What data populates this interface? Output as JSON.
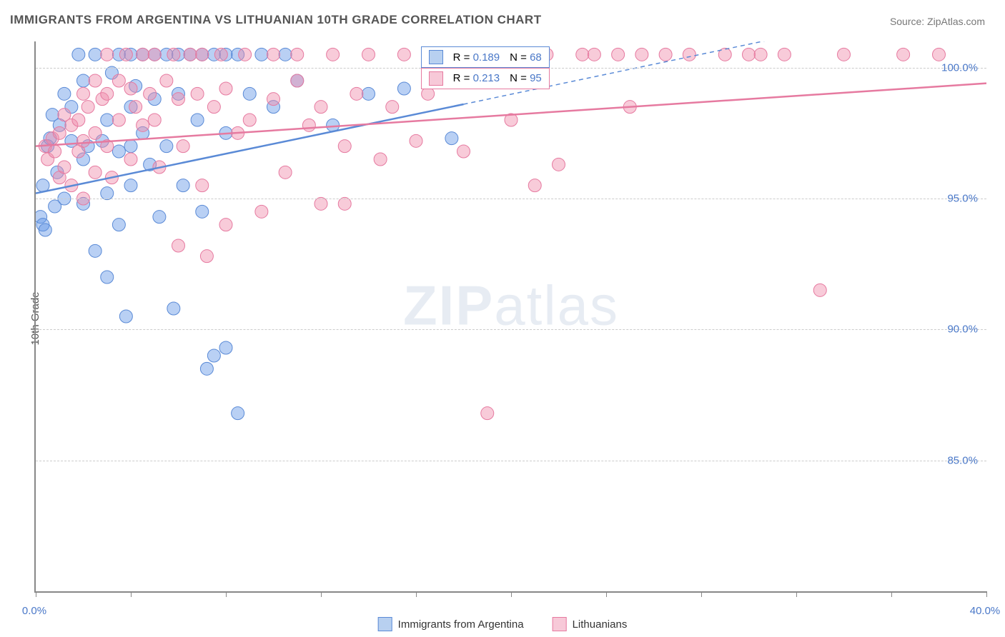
{
  "title": "IMMIGRANTS FROM ARGENTINA VS LITHUANIAN 10TH GRADE CORRELATION CHART",
  "source": "Source: ZipAtlas.com",
  "ylabel": "10th Grade",
  "watermark_bold": "ZIP",
  "watermark_rest": "atlas",
  "chart": {
    "type": "scatter",
    "xlim": [
      0,
      40
    ],
    "ylim": [
      80,
      101
    ],
    "xtick_positions": [
      0,
      4,
      8,
      12,
      16,
      20,
      24,
      28,
      32,
      36,
      40
    ],
    "xtick_labels": {
      "0": "0.0%",
      "40": "40.0%"
    },
    "ytick_positions": [
      85,
      90,
      95,
      100
    ],
    "ytick_labels": [
      "85.0%",
      "90.0%",
      "95.0%",
      "100.0%"
    ],
    "background_color": "#ffffff",
    "grid_color": "#cccccc",
    "axis_color": "#888888",
    "label_color": "#4a78c8",
    "marker_radius": 9,
    "marker_opacity": 0.55,
    "trend_line_width": 2.5,
    "series": [
      {
        "name": "Immigrants from Argentina",
        "color_fill": "rgba(100,150,230,0.45)",
        "color_stroke": "#5a8ad6",
        "swatch_fill": "#b8d0f0",
        "swatch_border": "#5a8ad6",
        "R": "0.189",
        "N": "68",
        "trend": {
          "x1": 0,
          "y1": 95.2,
          "x2": 18,
          "y2": 98.6,
          "x2_dash": 40,
          "y2_dash": 102.8
        },
        "points": [
          [
            0.2,
            94.3
          ],
          [
            0.3,
            94.0
          ],
          [
            0.4,
            93.8
          ],
          [
            0.3,
            95.5
          ],
          [
            0.5,
            97.0
          ],
          [
            0.6,
            97.3
          ],
          [
            0.8,
            94.7
          ],
          [
            0.7,
            98.2
          ],
          [
            0.9,
            96.0
          ],
          [
            1.0,
            97.8
          ],
          [
            1.2,
            99.0
          ],
          [
            1.2,
            95.0
          ],
          [
            1.5,
            98.5
          ],
          [
            1.5,
            97.2
          ],
          [
            1.8,
            100.5
          ],
          [
            2.0,
            99.5
          ],
          [
            2.0,
            96.5
          ],
          [
            2.0,
            94.8
          ],
          [
            2.2,
            97.0
          ],
          [
            2.5,
            100.5
          ],
          [
            2.5,
            93.0
          ],
          [
            2.8,
            97.2
          ],
          [
            3.0,
            98.0
          ],
          [
            3.0,
            95.2
          ],
          [
            3.0,
            92.0
          ],
          [
            3.2,
            99.8
          ],
          [
            3.5,
            100.5
          ],
          [
            3.5,
            96.8
          ],
          [
            3.5,
            94.0
          ],
          [
            3.8,
            90.5
          ],
          [
            4.0,
            100.5
          ],
          [
            4.0,
            98.5
          ],
          [
            4.0,
            97.0
          ],
          [
            4.0,
            95.5
          ],
          [
            4.2,
            99.3
          ],
          [
            4.5,
            100.5
          ],
          [
            4.5,
            97.5
          ],
          [
            4.8,
            96.3
          ],
          [
            5.0,
            100.5
          ],
          [
            5.0,
            98.8
          ],
          [
            5.2,
            94.3
          ],
          [
            5.5,
            100.5
          ],
          [
            5.5,
            97.0
          ],
          [
            5.8,
            90.8
          ],
          [
            6.0,
            100.5
          ],
          [
            6.0,
            99.0
          ],
          [
            6.2,
            95.5
          ],
          [
            6.5,
            100.5
          ],
          [
            6.8,
            98.0
          ],
          [
            7.0,
            100.5
          ],
          [
            7.0,
            94.5
          ],
          [
            7.2,
            88.5
          ],
          [
            7.5,
            100.5
          ],
          [
            7.5,
            89.0
          ],
          [
            8.0,
            100.5
          ],
          [
            8.0,
            97.5
          ],
          [
            8.0,
            89.3
          ],
          [
            8.5,
            100.5
          ],
          [
            8.5,
            86.8
          ],
          [
            9.0,
            99.0
          ],
          [
            9.5,
            100.5
          ],
          [
            10.0,
            98.5
          ],
          [
            10.5,
            100.5
          ],
          [
            11.0,
            99.5
          ],
          [
            12.5,
            97.8
          ],
          [
            14.0,
            99.0
          ],
          [
            15.5,
            99.2
          ],
          [
            17.5,
            97.3
          ]
        ]
      },
      {
        "name": "Lithuanians",
        "color_fill": "rgba(240,140,170,0.45)",
        "color_stroke": "#e67aa0",
        "swatch_fill": "#f7c9d8",
        "swatch_border": "#e67aa0",
        "R": "0.213",
        "N": "95",
        "trend": {
          "x1": 0,
          "y1": 97.0,
          "x2": 40,
          "y2": 99.4
        },
        "points": [
          [
            0.4,
            97.0
          ],
          [
            0.5,
            96.5
          ],
          [
            0.7,
            97.3
          ],
          [
            0.8,
            96.8
          ],
          [
            1.0,
            97.5
          ],
          [
            1.0,
            95.8
          ],
          [
            1.2,
            98.2
          ],
          [
            1.2,
            96.2
          ],
          [
            1.5,
            97.8
          ],
          [
            1.5,
            95.5
          ],
          [
            1.8,
            98.0
          ],
          [
            1.8,
            96.8
          ],
          [
            2.0,
            99.0
          ],
          [
            2.0,
            97.2
          ],
          [
            2.0,
            95.0
          ],
          [
            2.2,
            98.5
          ],
          [
            2.5,
            99.5
          ],
          [
            2.5,
            97.5
          ],
          [
            2.5,
            96.0
          ],
          [
            2.8,
            98.8
          ],
          [
            3.0,
            100.5
          ],
          [
            3.0,
            99.0
          ],
          [
            3.0,
            97.0
          ],
          [
            3.2,
            95.8
          ],
          [
            3.5,
            99.5
          ],
          [
            3.5,
            98.0
          ],
          [
            3.8,
            100.5
          ],
          [
            4.0,
            99.2
          ],
          [
            4.0,
            96.5
          ],
          [
            4.2,
            98.5
          ],
          [
            4.5,
            100.5
          ],
          [
            4.5,
            97.8
          ],
          [
            4.8,
            99.0
          ],
          [
            5.0,
            100.5
          ],
          [
            5.0,
            98.0
          ],
          [
            5.2,
            96.2
          ],
          [
            5.5,
            99.5
          ],
          [
            5.8,
            100.5
          ],
          [
            6.0,
            98.8
          ],
          [
            6.0,
            93.2
          ],
          [
            6.2,
            97.0
          ],
          [
            6.5,
            100.5
          ],
          [
            6.8,
            99.0
          ],
          [
            7.0,
            100.5
          ],
          [
            7.0,
            95.5
          ],
          [
            7.2,
            92.8
          ],
          [
            7.5,
            98.5
          ],
          [
            7.8,
            100.5
          ],
          [
            8.0,
            99.2
          ],
          [
            8.0,
            94.0
          ],
          [
            8.5,
            97.5
          ],
          [
            8.8,
            100.5
          ],
          [
            9.0,
            98.0
          ],
          [
            9.5,
            94.5
          ],
          [
            10.0,
            100.5
          ],
          [
            10.0,
            98.8
          ],
          [
            10.5,
            96.0
          ],
          [
            11.0,
            99.5
          ],
          [
            11.0,
            100.5
          ],
          [
            11.5,
            97.8
          ],
          [
            12.0,
            98.5
          ],
          [
            12.0,
            94.8
          ],
          [
            12.5,
            100.5
          ],
          [
            13.0,
            97.0
          ],
          [
            13.0,
            94.8
          ],
          [
            13.5,
            99.0
          ],
          [
            14.0,
            100.5
          ],
          [
            14.5,
            96.5
          ],
          [
            15.0,
            98.5
          ],
          [
            15.5,
            100.5
          ],
          [
            16.0,
            97.2
          ],
          [
            16.5,
            99.0
          ],
          [
            17.0,
            100.5
          ],
          [
            18.0,
            96.8
          ],
          [
            19.0,
            86.8
          ],
          [
            19.5,
            100.5
          ],
          [
            20.0,
            98.0
          ],
          [
            21.0,
            95.5
          ],
          [
            21.5,
            100.5
          ],
          [
            22.0,
            96.3
          ],
          [
            23.0,
            100.5
          ],
          [
            23.5,
            100.5
          ],
          [
            24.5,
            100.5
          ],
          [
            25.0,
            98.5
          ],
          [
            25.5,
            100.5
          ],
          [
            26.5,
            100.5
          ],
          [
            27.5,
            100.5
          ],
          [
            29.0,
            100.5
          ],
          [
            30.0,
            100.5
          ],
          [
            30.5,
            100.5
          ],
          [
            31.5,
            100.5
          ],
          [
            33.0,
            91.5
          ],
          [
            34.0,
            100.5
          ],
          [
            36.5,
            100.5
          ],
          [
            38.0,
            100.5
          ]
        ]
      }
    ]
  },
  "legend": {
    "series1": "Immigrants from Argentina",
    "series2": "Lithuanians"
  },
  "statbox": {
    "r_label": "R =",
    "n_label": "N ="
  }
}
